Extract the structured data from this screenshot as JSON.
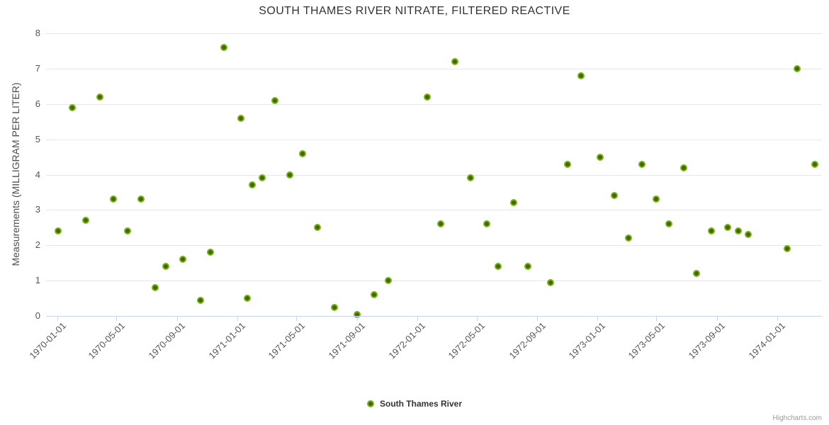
{
  "chart": {
    "title": "SOUTH THAMES RIVER NITRATE, FILTERED REACTIVE",
    "legend_label": "South Thames River",
    "credits": "Highcharts.com",
    "colors": {
      "marker_outer": "#7cb211",
      "marker_inner": "#3d6a05",
      "grid": "#e6e6e6",
      "axis": "#ccd6eb",
      "title_text": "#333333",
      "axis_label_text": "#555555"
    }
  },
  "chart_data": {
    "type": "scatter",
    "title": "SOUTH THAMES RIVER NITRATE, FILTERED REACTIVE",
    "xlabel": "",
    "ylabel": "Measurements (MILLIGRAM PER LITER)",
    "ylim": [
      0,
      8
    ],
    "yticks": [
      0,
      1,
      2,
      3,
      4,
      5,
      6,
      7,
      8
    ],
    "xticks": [
      "1970-01-01",
      "1970-05-01",
      "1970-09-01",
      "1971-01-01",
      "1971-05-01",
      "1971-09-01",
      "1972-01-01",
      "1972-05-01",
      "1972-09-01",
      "1973-01-01",
      "1973-05-01",
      "1973-09-01",
      "1974-01-01"
    ],
    "x_axis_range": [
      "1969-12-09",
      "1974-04-02"
    ],
    "grid": true,
    "legend_position": "bottom-center",
    "series": [
      {
        "name": "South Thames River",
        "points": [
          [
            "1970-01-03",
            2.4
          ],
          [
            "1970-01-31",
            5.9
          ],
          [
            "1970-02-28",
            2.7
          ],
          [
            "1970-03-28",
            6.2
          ],
          [
            "1970-04-25",
            3.3
          ],
          [
            "1970-05-24",
            2.4
          ],
          [
            "1970-06-20",
            3.3
          ],
          [
            "1970-07-19",
            0.8
          ],
          [
            "1970-08-09",
            1.4
          ],
          [
            "1970-09-13",
            1.6
          ],
          [
            "1970-10-18",
            0.45
          ],
          [
            "1970-11-07",
            1.8
          ],
          [
            "1970-12-05",
            7.6
          ],
          [
            "1971-01-09",
            5.6
          ],
          [
            "1971-01-22",
            0.5
          ],
          [
            "1971-02-01",
            3.7
          ],
          [
            "1971-02-21",
            3.9
          ],
          [
            "1971-03-19",
            6.1
          ],
          [
            "1971-04-18",
            4.0
          ],
          [
            "1971-05-14",
            4.6
          ],
          [
            "1971-06-13",
            2.5
          ],
          [
            "1971-07-18",
            0.25
          ],
          [
            "1971-09-02",
            0.05
          ],
          [
            "1971-10-06",
            0.6
          ],
          [
            "1971-11-04",
            1.0
          ],
          [
            "1972-01-22",
            6.2
          ],
          [
            "1972-02-18",
            2.6
          ],
          [
            "1972-03-18",
            7.2
          ],
          [
            "1972-04-19",
            3.9
          ],
          [
            "1972-05-22",
            2.6
          ],
          [
            "1972-06-14",
            1.4
          ],
          [
            "1972-07-16",
            3.2
          ],
          [
            "1972-08-13",
            1.4
          ],
          [
            "1972-09-28",
            0.95
          ],
          [
            "1972-11-02",
            4.3
          ],
          [
            "1972-11-29",
            6.8
          ],
          [
            "1973-01-07",
            4.5
          ],
          [
            "1973-02-04",
            3.4
          ],
          [
            "1973-03-06",
            2.2
          ],
          [
            "1973-04-01",
            4.3
          ],
          [
            "1973-04-30",
            3.3
          ],
          [
            "1973-05-26",
            2.6
          ],
          [
            "1973-06-25",
            4.2
          ],
          [
            "1973-07-22",
            1.2
          ],
          [
            "1973-08-20",
            2.4
          ],
          [
            "1973-09-23",
            2.5
          ],
          [
            "1973-10-14",
            2.4
          ],
          [
            "1973-11-04",
            2.3
          ],
          [
            "1974-01-21",
            1.9
          ],
          [
            "1974-02-10",
            7.0
          ],
          [
            "1974-03-18",
            4.3
          ]
        ]
      }
    ]
  }
}
